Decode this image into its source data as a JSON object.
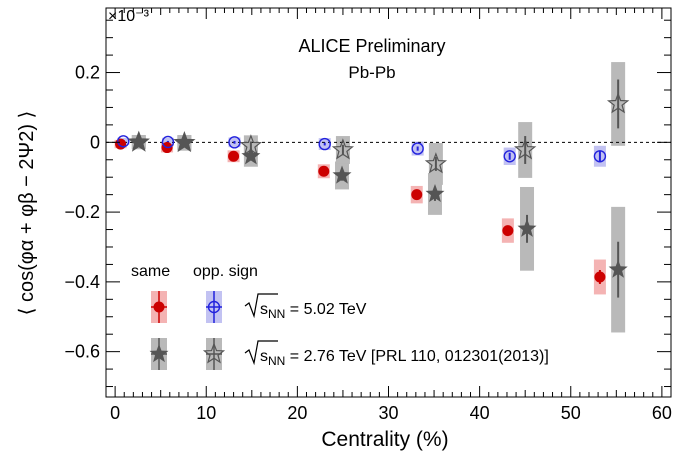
{
  "chart_data": {
    "type": "scatter",
    "title": "ALICE Preliminary",
    "subtitle": "Pb-Pb",
    "xlabel": "Centrality (%)",
    "ylabel": "⟨ cos(φα + φβ − 2Ψ2) ⟩",
    "y_exponent": "×10⁻³",
    "xlim": [
      -1,
      61
    ],
    "ylim": [
      -0.73,
      0.385
    ],
    "x_ticks": [
      "0",
      "10",
      "20",
      "30",
      "40",
      "50",
      "60"
    ],
    "y_ticks": [
      "−0.6",
      "−0.4",
      "−0.2",
      "0",
      "0.2"
    ],
    "x_tick_values": [
      0,
      10,
      20,
      30,
      40,
      50,
      60
    ],
    "y_tick_values": [
      -0.6,
      -0.4,
      -0.2,
      0,
      0.2
    ],
    "zero_line": true,
    "legend_header": {
      "same": "same",
      "opp": "opp. sign"
    },
    "legend_rows": [
      {
        "label_prefix": "s",
        "label_sub": "NN",
        "label_suffix": " = 5.02 TeV"
      },
      {
        "label_prefix": "s",
        "label_sub": "NN",
        "label_suffix": " = 2.76 TeV [PRL 110, 012301(2013)]"
      }
    ],
    "colors": {
      "same_502": "#cc0000",
      "same_502_sys": "#f4b3b3",
      "opp_502": "#2222dd",
      "opp_502_sys": "#c2c2f2",
      "same_276": "#555555",
      "same_276_sys": "#b9b9b9",
      "opp_276": "#555555",
      "opp_276_sys": "#b9b9b9"
    },
    "series": [
      {
        "key": "same_502",
        "marker": "filled-circle",
        "x": [
          0.6,
          5.7,
          13.0,
          22.9,
          33.1,
          43.1,
          53.2
        ],
        "y": [
          -0.005,
          -0.015,
          -0.04,
          -0.083,
          -0.15,
          -0.253,
          -0.386
        ],
        "stat_err": [
          0.003,
          0.003,
          0.004,
          0.005,
          0.008,
          0.012,
          0.02
        ],
        "sys_err": [
          0.012,
          0.014,
          0.017,
          0.02,
          0.025,
          0.035,
          0.05
        ]
      },
      {
        "key": "opp_502",
        "marker": "open-circle",
        "x": [
          0.9,
          5.8,
          13.1,
          23.0,
          33.2,
          43.3,
          53.2
        ],
        "y": [
          0.003,
          0.001,
          0.0,
          -0.005,
          -0.018,
          -0.04,
          -0.04
        ],
        "stat_err": [
          0.003,
          0.003,
          0.004,
          0.004,
          0.006,
          0.01,
          0.015
        ],
        "sys_err": [
          0.01,
          0.012,
          0.014,
          0.017,
          0.02,
          0.025,
          0.03
        ]
      },
      {
        "key": "same_276",
        "marker": "filled-star",
        "x": [
          2.6,
          7.6,
          14.9,
          24.9,
          35.1,
          45.2,
          55.2
        ],
        "y": [
          0.001,
          -0.002,
          -0.04,
          -0.095,
          -0.148,
          -0.248,
          -0.365
        ],
        "stat_err": [
          0.005,
          0.006,
          0.01,
          0.015,
          0.02,
          0.04,
          0.08
        ],
        "sys_err": [
          0.02,
          0.022,
          0.03,
          0.04,
          0.06,
          0.12,
          0.18
        ]
      },
      {
        "key": "opp_276",
        "marker": "open-star",
        "x": [
          2.6,
          7.6,
          14.9,
          25.0,
          35.2,
          45.0,
          55.2
        ],
        "y": [
          0.0,
          -0.001,
          -0.01,
          -0.022,
          -0.062,
          -0.022,
          0.11
        ],
        "stat_err": [
          0.005,
          0.006,
          0.012,
          0.015,
          0.02,
          0.04,
          0.07
        ],
        "sys_err": [
          0.02,
          0.022,
          0.03,
          0.04,
          0.06,
          0.08,
          0.12
        ]
      }
    ]
  }
}
